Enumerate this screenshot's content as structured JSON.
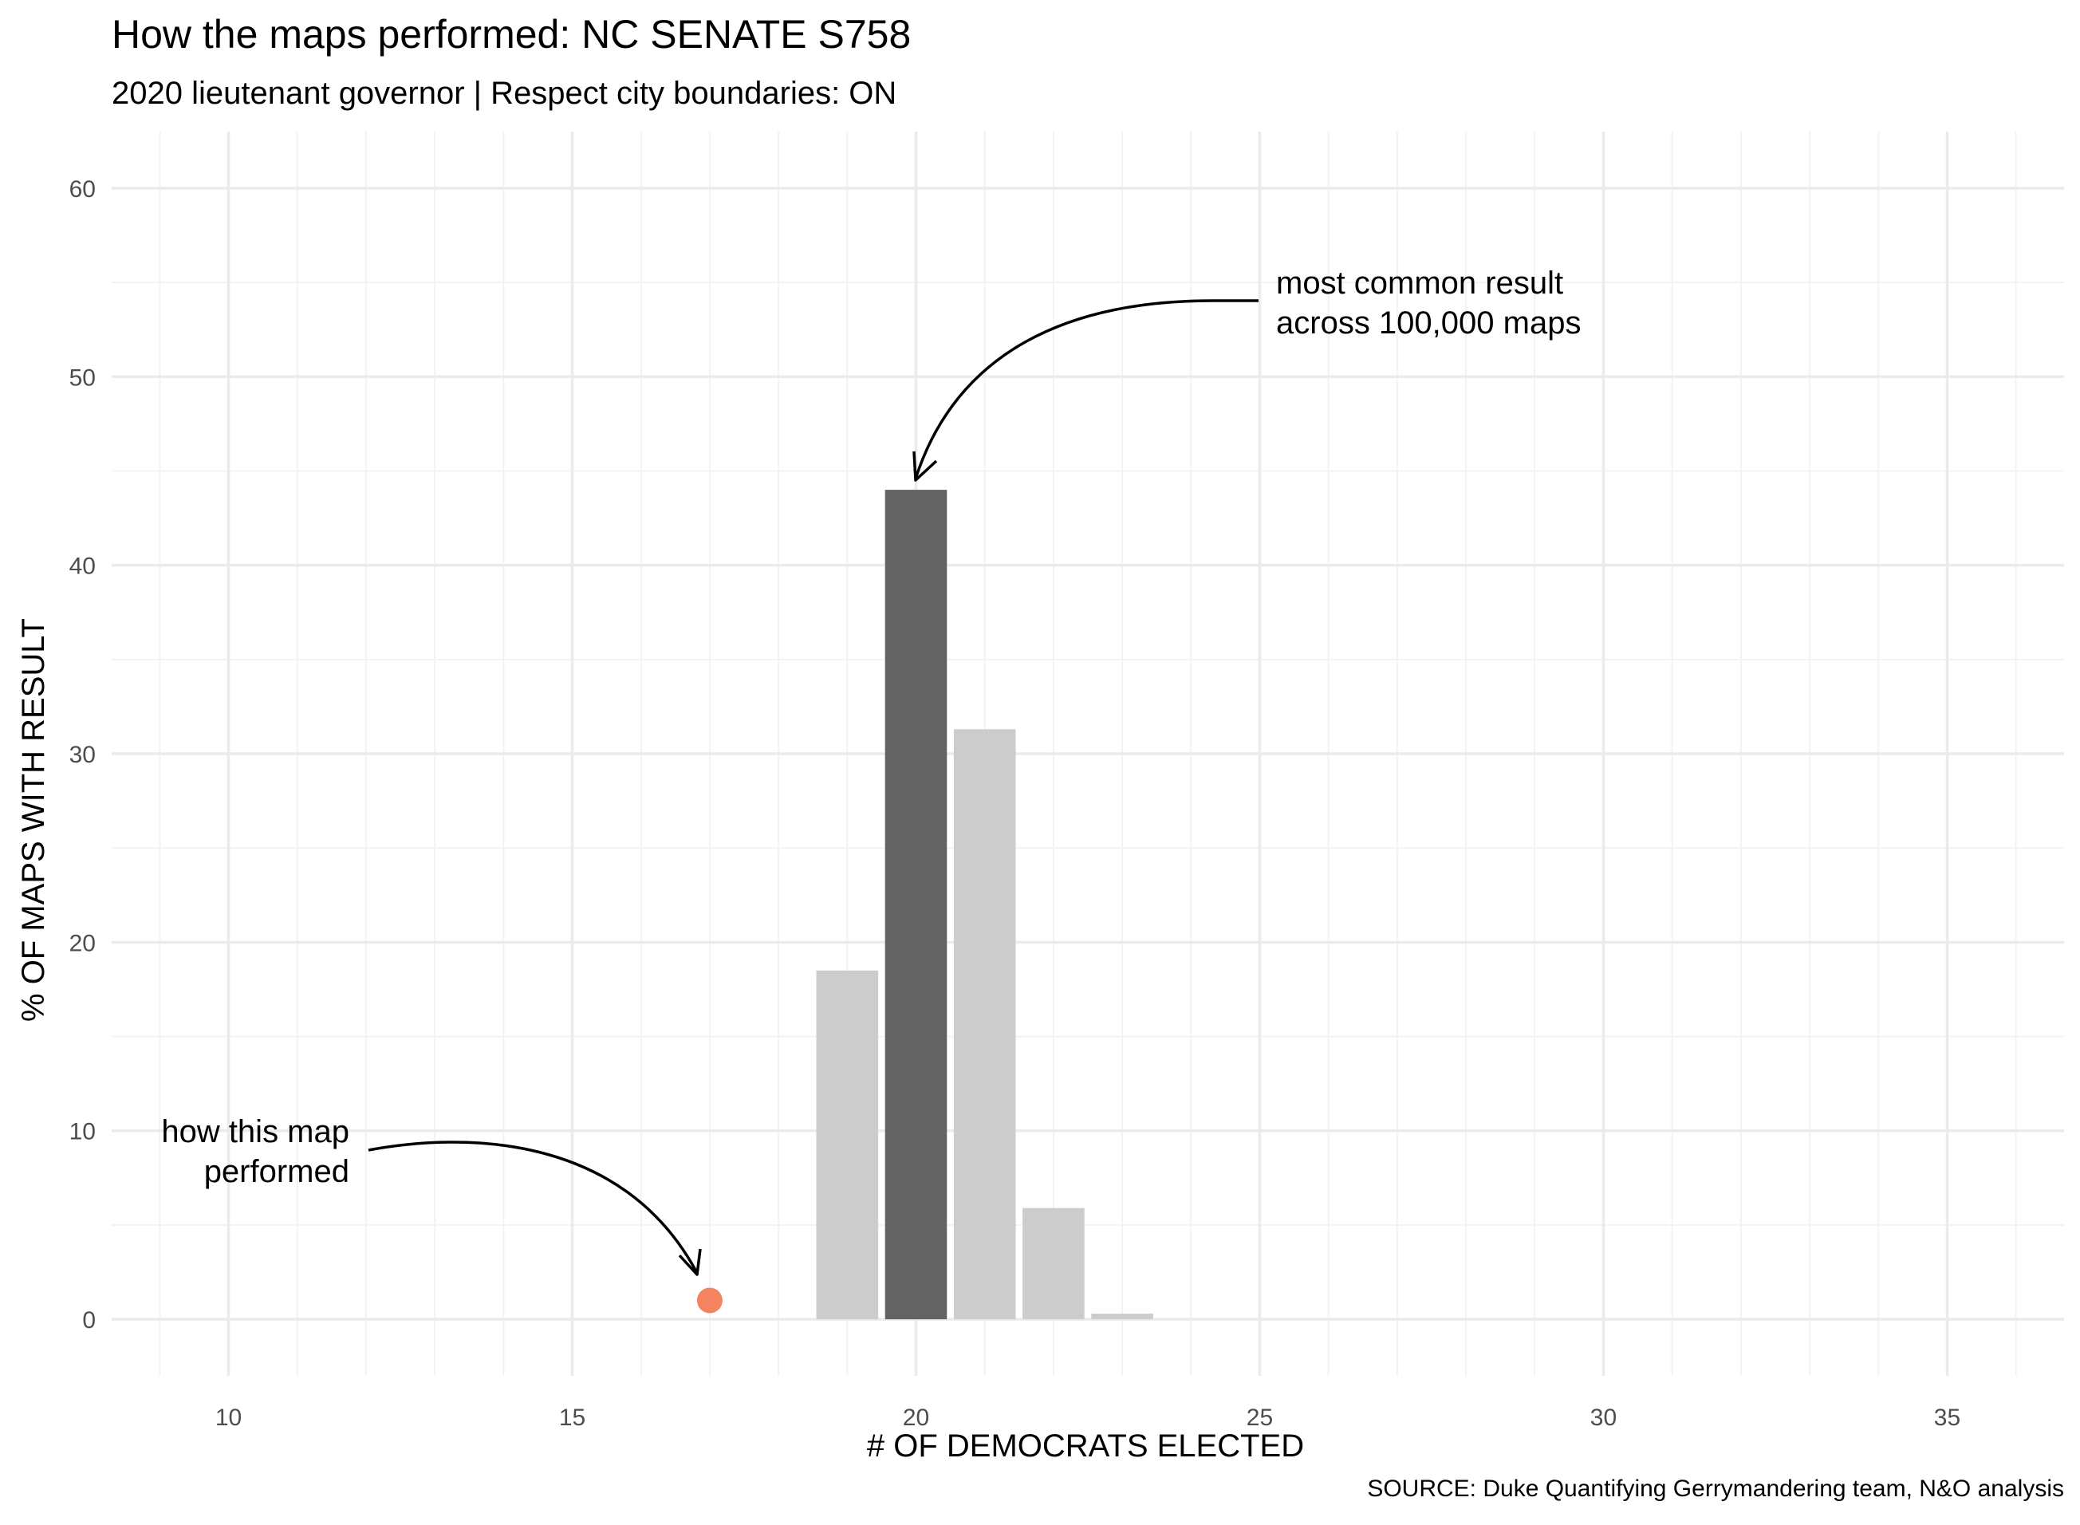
{
  "chart_data": {
    "type": "bar",
    "title": "How the maps performed: NC SENATE S758",
    "subtitle": "2020 lieutenant governor | Respect city boundaries: ON",
    "xlabel": "# OF DEMOCRATS ELECTED",
    "ylabel": "% OF MAPS WITH RESULT",
    "caption": "SOURCE: Duke Quantifying Gerrymandering team, N&O analysis",
    "xlim": [
      8.3,
      36.7
    ],
    "ylim": [
      -3,
      63
    ],
    "x_ticks": [
      10,
      15,
      20,
      25,
      30,
      35
    ],
    "y_ticks": [
      0,
      10,
      20,
      30,
      40,
      50,
      60
    ],
    "grid": true,
    "bars": [
      {
        "x": 19,
        "value": 18.5,
        "highlight": false
      },
      {
        "x": 20,
        "value": 44.0,
        "highlight": true
      },
      {
        "x": 21,
        "value": 31.3,
        "highlight": false
      },
      {
        "x": 22,
        "value": 5.9,
        "highlight": false
      },
      {
        "x": 23,
        "value": 0.3,
        "highlight": false
      }
    ],
    "point": {
      "x": 17,
      "y": 1.0
    },
    "annotations": [
      {
        "lines": [
          "most common result",
          "across 100,000 maps"
        ]
      },
      {
        "lines": [
          "how this map",
          "performed"
        ]
      }
    ],
    "colors": {
      "bar": "#cccccc",
      "bar_highlight": "#636363",
      "point": "#f4845f",
      "grid_major": "#ebebeb",
      "grid_minor": "#f3f3f3"
    }
  }
}
